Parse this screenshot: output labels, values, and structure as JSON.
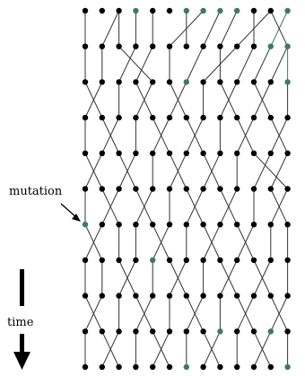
{
  "labels": {
    "mutation": "mutation",
    "time": "time"
  },
  "colors": {
    "wild_type": "#000000",
    "mutant": "#3f7a5e",
    "background": "#ffffff"
  },
  "generations": [
    "bbbgbbggggbbg",
    "bbbbbbbbbbbgg",
    "bbbbbbgbbbbbg",
    "bbbbbbbbbbbbb",
    "bbbbbbbbbbbbb",
    "bbbbbbbbbbbbb",
    "gbbbbbbbbbbbb",
    "bbbbgbbbbbbbb",
    "bbbbbbbbbbbbb",
    "bbbbbbbbgbbgb",
    "bbbbbbgbbbbbg"
  ],
  "parents": [
    [
      0,
      2,
      2,
      3,
      4,
      7,
      6,
      8,
      9,
      11,
      10,
      12,
      11
    ],
    [
      0,
      1,
      3,
      4,
      2,
      5,
      7,
      9,
      8,
      10,
      11,
      12,
      12
    ],
    [
      1,
      0,
      2,
      4,
      3,
      6,
      5,
      7,
      9,
      8,
      11,
      10,
      12
    ],
    [
      0,
      2,
      1,
      3,
      5,
      4,
      7,
      6,
      8,
      10,
      9,
      12,
      11
    ],
    [
      1,
      0,
      3,
      2,
      4,
      6,
      5,
      8,
      7,
      9,
      11,
      12,
      10
    ],
    [
      0,
      2,
      1,
      4,
      3,
      5,
      7,
      6,
      9,
      8,
      10,
      12,
      11
    ],
    [
      1,
      0,
      2,
      3,
      5,
      4,
      6,
      8,
      7,
      10,
      9,
      11,
      12
    ],
    [
      0,
      1,
      3,
      2,
      4,
      6,
      5,
      7,
      9,
      8,
      11,
      10,
      12
    ],
    [
      1,
      0,
      2,
      4,
      3,
      5,
      7,
      6,
      8,
      10,
      9,
      12,
      11
    ],
    [
      0,
      2,
      1,
      3,
      5,
      4,
      6,
      8,
      7,
      9,
      11,
      10,
      12
    ]
  ]
}
